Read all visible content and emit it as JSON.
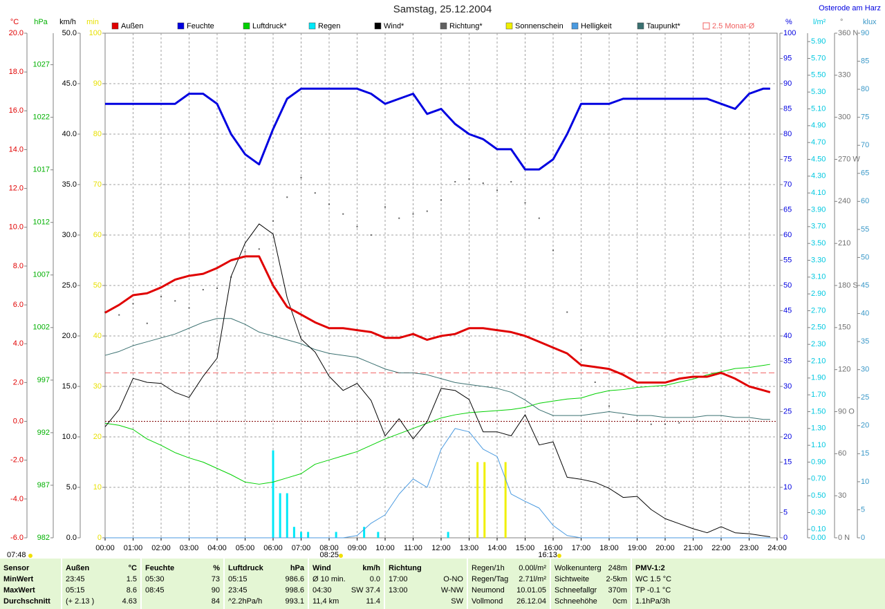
{
  "chart_data": {
    "type": "line",
    "title": "Samstag, 25.12.2004",
    "station": "Osterode am Harz",
    "grid": true,
    "grid_axis": 2,
    "xlim": [
      0,
      24
    ],
    "xticks": [
      {
        "value": 0,
        "label": "00:00"
      },
      {
        "value": 1,
        "label": "01:00"
      },
      {
        "value": 2,
        "label": "02:00"
      },
      {
        "value": 3,
        "label": "03:00"
      },
      {
        "value": 4,
        "label": "04:00"
      },
      {
        "value": 5,
        "label": "05:00"
      },
      {
        "value": 6,
        "label": "06:00"
      },
      {
        "value": 7,
        "label": "07:00"
      },
      {
        "value": 8,
        "label": "08:00"
      },
      {
        "value": 9,
        "label": "09:00"
      },
      {
        "value": 10,
        "label": "10:00"
      },
      {
        "value": 11,
        "label": "11:00"
      },
      {
        "value": 12,
        "label": "12:00"
      },
      {
        "value": 13,
        "label": "13:00"
      },
      {
        "value": 14,
        "label": "14:00"
      },
      {
        "value": 15,
        "label": "15:00"
      },
      {
        "value": 16,
        "label": "16:00"
      },
      {
        "value": 17,
        "label": "17:00"
      },
      {
        "value": 18,
        "label": "18:00"
      },
      {
        "value": 19,
        "label": "19:00"
      },
      {
        "value": 20,
        "label": "20:00"
      },
      {
        "value": 21,
        "label": "21:00"
      },
      {
        "value": 22,
        "label": "22:00"
      },
      {
        "value": 23,
        "label": "23:00"
      },
      {
        "value": 24,
        "label": "24:00"
      }
    ],
    "axes": [
      {
        "label": "°C",
        "color": "#e00000",
        "lim": [
          -6,
          20
        ],
        "ticks": [
          {
            "value": -6,
            "label": "-6.0"
          },
          {
            "value": -4,
            "label": "-4.0"
          },
          {
            "value": -2,
            "label": "-2.0"
          },
          {
            "value": 0,
            "label": "0.0"
          },
          {
            "value": 2,
            "label": "2.0"
          },
          {
            "value": 4,
            "label": "4.0"
          },
          {
            "value": 6,
            "label": "6.0"
          },
          {
            "value": 8,
            "label": "8.0"
          },
          {
            "value": 10,
            "label": "10.0"
          },
          {
            "value": 12,
            "label": "12.0"
          },
          {
            "value": 14,
            "label": "14.0"
          },
          {
            "value": 16,
            "label": "16.0"
          },
          {
            "value": 18,
            "label": "18.0"
          },
          {
            "value": 20,
            "label": "20.0"
          }
        ]
      },
      {
        "label": "hPa",
        "color": "#00b000",
        "lim": [
          982,
          1030
        ],
        "ticks": [
          982,
          987,
          992,
          997,
          1002,
          1007,
          1012,
          1017,
          1022,
          1027
        ]
      },
      {
        "label": "km/h",
        "color": "#000000",
        "lim": [
          0,
          50
        ],
        "ticks": [
          {
            "value": 0,
            "label": "0.0"
          },
          {
            "value": 5,
            "label": "5.0"
          },
          {
            "value": 10,
            "label": "10.0"
          },
          {
            "value": 15,
            "label": "15.0"
          },
          {
            "value": 20,
            "label": "20.0"
          },
          {
            "value": 25,
            "label": "25.0"
          },
          {
            "value": 30,
            "label": "30.0"
          },
          {
            "value": 35,
            "label": "35.0"
          },
          {
            "value": 40,
            "label": "40.0"
          },
          {
            "value": 45,
            "label": "45.0"
          },
          {
            "value": 50,
            "label": "50.0"
          }
        ]
      },
      {
        "label": "min",
        "color": "#e8e000",
        "lim": [
          0,
          100
        ],
        "ticks": [
          0,
          10,
          20,
          30,
          40,
          50,
          60,
          70,
          80,
          90,
          100
        ]
      },
      {
        "label": "%",
        "color": "#0000e0",
        "lim": [
          0,
          100
        ],
        "ticks": [
          0,
          5,
          10,
          15,
          20,
          25,
          30,
          35,
          40,
          45,
          50,
          55,
          60,
          65,
          70,
          75,
          80,
          85,
          90,
          95,
          100
        ]
      },
      {
        "label": "l/m²",
        "color": "#00c8e0",
        "lim": [
          0,
          6
        ],
        "ticks": [
          {
            "value": 0,
            "label": "0.00"
          },
          {
            "value": 0.1,
            "label": "0.10"
          },
          {
            "value": 0.3,
            "label": "0.30"
          },
          {
            "value": 0.5,
            "label": "0.50"
          },
          {
            "value": 0.7,
            "label": "0.70"
          },
          {
            "value": 0.9,
            "label": "0.90"
          },
          {
            "value": 1.1,
            "label": "1.10"
          },
          {
            "value": 1.3,
            "label": "1.30"
          },
          {
            "value": 1.5,
            "label": "1.50"
          },
          {
            "value": 1.7,
            "label": "1.70"
          },
          {
            "value": 1.9,
            "label": "1.90"
          },
          {
            "value": 2.1,
            "label": "2.10"
          },
          {
            "value": 2.3,
            "label": "2.30"
          },
          {
            "value": 2.5,
            "label": "2.50"
          },
          {
            "value": 2.7,
            "label": "2.70"
          },
          {
            "value": 2.9,
            "label": "2.90"
          },
          {
            "value": 3.1,
            "label": "3.10"
          },
          {
            "value": 3.3,
            "label": "3.30"
          },
          {
            "value": 3.5,
            "label": "3.50"
          },
          {
            "value": 3.7,
            "label": "3.70"
          },
          {
            "value": 3.9,
            "label": "3.90"
          },
          {
            "value": 4.1,
            "label": "4.10"
          },
          {
            "value": 4.3,
            "label": "4.30"
          },
          {
            "value": 4.5,
            "label": "4.50"
          },
          {
            "value": 4.7,
            "label": "4.70"
          },
          {
            "value": 4.9,
            "label": "4.90"
          },
          {
            "value": 5.1,
            "label": "5.10"
          },
          {
            "value": 5.3,
            "label": "5.30"
          },
          {
            "value": 5.5,
            "label": "5.50"
          },
          {
            "value": 5.7,
            "label": "5.70"
          },
          {
            "value": 5.9,
            "label": "5.90"
          }
        ]
      },
      {
        "label": "°",
        "color": "#707070",
        "lim": [
          0,
          360
        ],
        "ticks": [
          {
            "value": 0,
            "label": "0 N"
          },
          30,
          60,
          {
            "value": 90,
            "label": "90 O"
          },
          120,
          150,
          {
            "value": 180,
            "label": "180 S"
          },
          210,
          240,
          {
            "value": 270,
            "label": "270 W"
          },
          300,
          330,
          {
            "value": 360,
            "label": "360 N"
          }
        ]
      },
      {
        "label": "klux",
        "color": "#3a98c8",
        "lim": [
          0,
          90
        ],
        "ticks": [
          0,
          5,
          10,
          15,
          20,
          25,
          30,
          35,
          40,
          45,
          50,
          55,
          60,
          65,
          70,
          75,
          80,
          85,
          90
        ]
      }
    ],
    "x": [
      0,
      0.5,
      1,
      1.5,
      2,
      2.5,
      3,
      3.5,
      4,
      4.5,
      5,
      5.5,
      6,
      6.5,
      7,
      7.5,
      8,
      8.5,
      9,
      9.5,
      10,
      10.5,
      11,
      11.5,
      12,
      12.5,
      13,
      13.5,
      14,
      14.5,
      15,
      15.5,
      16,
      16.5,
      17,
      17.5,
      18,
      18.5,
      19,
      19.5,
      20,
      20.5,
      21,
      21.5,
      22,
      22.5,
      23,
      23.5,
      23.75
    ],
    "series": [
      {
        "name": "Außen",
        "color": "#e00000",
        "type": "line",
        "axis": 0,
        "width": 3,
        "values": [
          5.6,
          6.0,
          6.5,
          6.6,
          6.9,
          7.3,
          7.5,
          7.6,
          7.9,
          8.3,
          8.5,
          8.5,
          7.0,
          5.9,
          5.5,
          5.1,
          4.8,
          4.8,
          4.7,
          4.6,
          4.3,
          4.3,
          4.5,
          4.2,
          4.4,
          4.5,
          4.8,
          4.8,
          4.7,
          4.6,
          4.4,
          4.1,
          3.8,
          3.5,
          2.9,
          2.8,
          2.7,
          2.4,
          2.0,
          2.0,
          2.0,
          2.2,
          2.3,
          2.3,
          2.5,
          2.2,
          1.8,
          1.6,
          1.5
        ]
      },
      {
        "name": "Feuchte",
        "color": "#0000e0",
        "type": "line",
        "axis": 4,
        "width": 3,
        "values": [
          86,
          86,
          86,
          86,
          86,
          86,
          88,
          88,
          86,
          80,
          76,
          74,
          81,
          87,
          89,
          89,
          89,
          89,
          89,
          88,
          86,
          87,
          88,
          84,
          85,
          82,
          80,
          79,
          77,
          77,
          73,
          73,
          75,
          80,
          86,
          86,
          86,
          87,
          87,
          87,
          87,
          87,
          87,
          87,
          86,
          85,
          88,
          89,
          89
        ]
      },
      {
        "name": "Luftdruck*",
        "color": "#00d000",
        "type": "line",
        "axis": 1,
        "width": 1,
        "values": [
          992.9,
          992.7,
          992.3,
          991.4,
          990.8,
          990.1,
          989.6,
          989.2,
          988.6,
          988.0,
          987.3,
          987.1,
          987.3,
          987.7,
          988.1,
          989.0,
          989.4,
          989.8,
          990.2,
          990.8,
          991.4,
          991.9,
          992.4,
          992.9,
          993.4,
          993.7,
          993.9,
          994.0,
          994.1,
          994.2,
          994.4,
          994.8,
          995.0,
          995.2,
          995.3,
          995.7,
          996.0,
          996.1,
          996.3,
          996.4,
          996.5,
          996.8,
          997.1,
          997.5,
          997.8,
          998.1,
          998.2,
          998.4,
          998.5
        ]
      },
      {
        "name": "Regen",
        "color": "#00e8f8",
        "type": "bar",
        "axis": 5,
        "x": [
          6,
          6.25,
          6.5,
          6.75,
          7,
          7.25,
          8.25,
          9.25,
          9.75,
          12.25
        ],
        "values": [
          1.04,
          0.53,
          0.53,
          0.13,
          0.07,
          0.07,
          0.07,
          0.13,
          0.07,
          0.07
        ]
      },
      {
        "name": "Wind*",
        "color": "#000000",
        "type": "line",
        "axis": 2,
        "width": 1,
        "values": [
          11.0,
          12.7,
          15.8,
          15.4,
          15.3,
          14.4,
          13.9,
          16.0,
          17.8,
          25.9,
          29.2,
          31.1,
          30.1,
          23.8,
          19.7,
          18.4,
          16.0,
          14.6,
          15.3,
          13.6,
          10.1,
          11.8,
          9.8,
          11.5,
          14.8,
          14.6,
          13.7,
          10.5,
          10.5,
          10.1,
          12.2,
          9.2,
          9.5,
          6.0,
          5.8,
          5.5,
          4.9,
          4.0,
          4.1,
          2.8,
          1.9,
          1.4,
          0.9,
          0.5,
          1.1,
          0.5,
          0.4,
          0.2,
          0.1
        ]
      },
      {
        "name": "Richtung*",
        "color": "#606060",
        "type": "scatter",
        "axis": 6,
        "values": [
          161,
          159,
          167,
          153,
          172,
          169,
          164,
          177,
          178,
          186,
          204,
          206,
          226,
          243,
          257,
          246,
          238,
          231,
          222,
          216,
          236,
          228,
          231,
          233,
          241,
          254,
          256,
          253,
          248,
          254,
          239,
          228,
          205,
          161,
          134,
          111,
          94,
          86,
          84,
          81,
          81,
          82,
          null,
          null,
          null,
          null,
          null,
          null,
          null
        ]
      },
      {
        "name": "Sonnenschein",
        "color": "#f0f000",
        "type": "bar",
        "axis": 3,
        "x": [
          13.3,
          13.55,
          14.3
        ],
        "values": [
          15,
          15,
          15
        ]
      },
      {
        "name": "Helligkeit",
        "color": "#4a9ae0",
        "type": "line",
        "axis": 7,
        "width": 1,
        "values": [
          0,
          0,
          0,
          0,
          0,
          0,
          0,
          0,
          0,
          0,
          0,
          0,
          0,
          0,
          0,
          0,
          0,
          0,
          0.4,
          2.6,
          4.1,
          7.8,
          10.5,
          9.0,
          15.8,
          19.5,
          18.9,
          15.8,
          14.5,
          7.8,
          6.5,
          5.3,
          2.2,
          0.4,
          0,
          0,
          0,
          0,
          0,
          0,
          0,
          0,
          0,
          0,
          0,
          0,
          0,
          0,
          0
        ]
      },
      {
        "name": "Taupunkt*",
        "color": "#3a7070",
        "type": "line",
        "axis": 0,
        "width": 1,
        "values": [
          3.4,
          3.6,
          3.9,
          4.1,
          4.3,
          4.5,
          4.8,
          5.1,
          5.3,
          5.3,
          5.0,
          4.6,
          4.4,
          4.2,
          4.0,
          3.7,
          3.5,
          3.4,
          3.3,
          3.0,
          2.7,
          2.5,
          2.5,
          2.4,
          2.2,
          2.0,
          1.9,
          1.8,
          1.7,
          1.5,
          1.1,
          0.6,
          0.3,
          0.3,
          0.3,
          0.4,
          0.5,
          0.4,
          0.3,
          0.3,
          0.2,
          0.2,
          0.2,
          0.3,
          0.3,
          0.2,
          0.2,
          0.1,
          0.1
        ]
      }
    ],
    "reference": {
      "name": "2.5 Monat-Ø",
      "value": 2.5,
      "color": "#f06060",
      "axis": 0
    },
    "zero_line": {
      "axis": 0,
      "color": "#800000"
    },
    "sunrise_label": "07:48",
    "sun_marks": [
      {
        "value": 8.42,
        "label": "08:25"
      },
      {
        "value": 16.22,
        "label": "16:13"
      }
    ]
  },
  "footer": {
    "blocks": [
      {
        "rows": [
          {
            "left": "Sensor"
          },
          {
            "left": "MinWert"
          },
          {
            "left": "MaxWert"
          },
          {
            "left": "Durchschnitt"
          }
        ]
      },
      {
        "rows": [
          {
            "left": "Außen",
            "right": "°C"
          },
          {
            "left": "23:45",
            "right": "1.5"
          },
          {
            "left": "05:15",
            "right": "8.6"
          },
          {
            "left": "(+ 2.13 )",
            "right": "4.63"
          }
        ]
      },
      {
        "rows": [
          {
            "left": "Feuchte",
            "right": "%"
          },
          {
            "left": "05:30",
            "right": "73"
          },
          {
            "left": "08:45",
            "right": "90"
          },
          {
            "right": "84"
          }
        ]
      },
      {
        "rows": [
          {
            "left": "Luftdruck",
            "right": "hPa"
          },
          {
            "left": "05:15",
            "right": "986.6"
          },
          {
            "left": "23:45",
            "right": "998.6"
          },
          {
            "left": "^2.2hPa/h",
            "right": "993.1"
          }
        ]
      },
      {
        "rows": [
          {
            "left": "Wind",
            "right": "km/h"
          },
          {
            "left": "Ø 10 min.",
            "right": "0.0"
          },
          {
            "left": "04:30",
            "right": "SW 37.4"
          },
          {
            "left": "11,4 km",
            "right": "11.4"
          }
        ]
      },
      {
        "rows": [
          {
            "left": "Richtung"
          },
          {
            "left": "17:00",
            "right": "O-NO"
          },
          {
            "left": "13:00",
            "right": "W-NW"
          },
          {
            "right": "SW"
          }
        ]
      },
      {
        "rows": [
          {
            "left": "Regen/1h",
            "right": "0.00l/m²"
          },
          {
            "left": "Regen/Tag",
            "right": "2.71l/m²"
          },
          {
            "left": "Neumond",
            "right": "10.01.05"
          },
          {
            "left": "Vollmond",
            "right": "26.12.04"
          }
        ]
      },
      {
        "rows": [
          {
            "left": "Wolkenunterg",
            "right": "248m"
          },
          {
            "left": "Sichtweite",
            "right": "2-5km"
          },
          {
            "left": "Schneefallgr",
            "right": "370m"
          },
          {
            "left": "Schneehöhe",
            "right": "0cm"
          }
        ]
      },
      {
        "rows": [
          {
            "left": "PMV-1:2"
          },
          {
            "left": "WC 1.5 °C"
          },
          {
            "left": "TP -0.1 °C"
          },
          {
            "left": "1.1hPa/3h"
          }
        ]
      }
    ]
  }
}
